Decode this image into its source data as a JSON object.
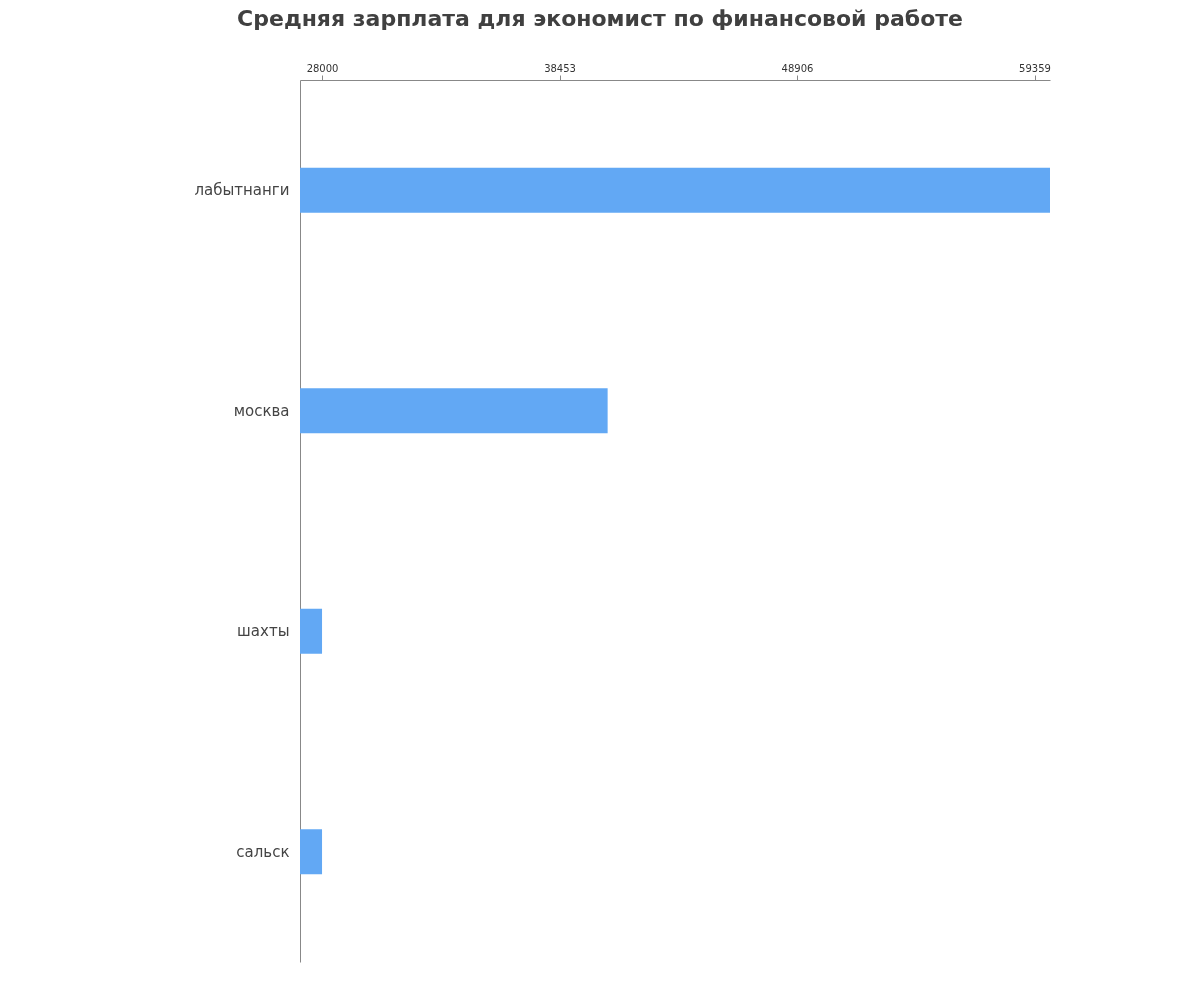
{
  "chart_data": {
    "type": "bar",
    "orientation": "horizontal",
    "title": "Средняя зарплата для экономист по финансовой работе",
    "categories": [
      "лабытнанги",
      "москва",
      "шахты",
      "сальск"
    ],
    "values": [
      60040,
      40570,
      28000,
      28000
    ],
    "color": "#62a8f4",
    "xlim": [
      27030,
      60040
    ],
    "xticks": [
      28000,
      38453,
      48906,
      59359
    ],
    "grid": false
  }
}
